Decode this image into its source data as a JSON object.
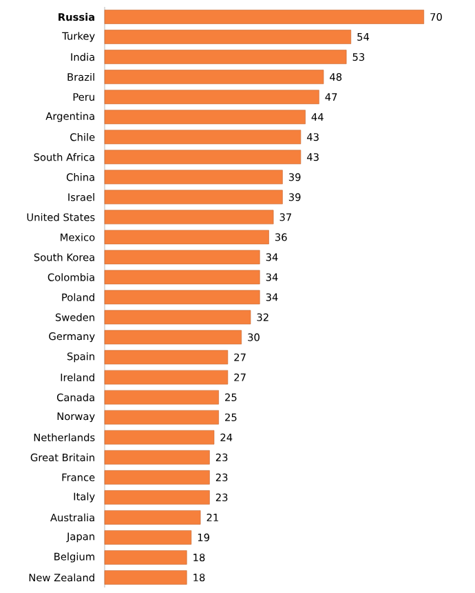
{
  "chart_data": {
    "type": "bar",
    "orientation": "horizontal",
    "data_labels": true,
    "color": "#f6803c",
    "categories": [
      "**Russia**",
      "Turkey",
      "India",
      "Brazil",
      "Peru",
      "Argentina",
      "Chile",
      "South Africa",
      "China",
      "Israel",
      "United States",
      "Mexico",
      "South Korea",
      "Colombia",
      "Poland",
      "Sweden",
      "Germany",
      "Spain",
      "Ireland",
      "Canada",
      "Norway",
      "Netherlands",
      "Great Britain",
      "France",
      "Italy",
      "Australia",
      "Japan",
      "Belgium",
      "New Zealand"
    ],
    "values": [
      70,
      54,
      53,
      48,
      47,
      44,
      43,
      43,
      39,
      39,
      37,
      36,
      34,
      34,
      34,
      32,
      30,
      27,
      27,
      25,
      25,
      24,
      23,
      23,
      23,
      21,
      19,
      18,
      18
    ]
  }
}
